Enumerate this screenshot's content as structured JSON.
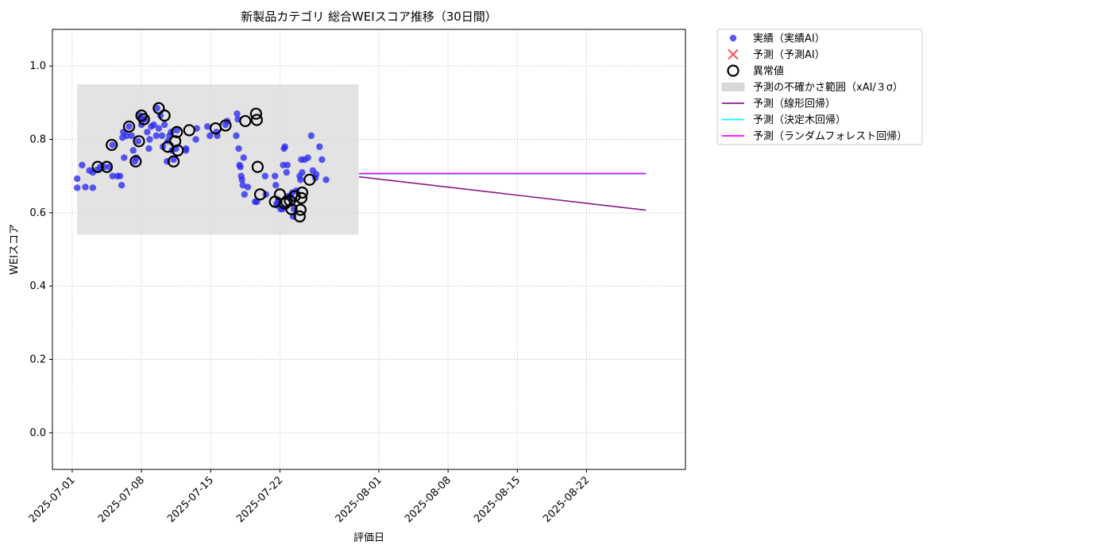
{
  "chart_data": {
    "type": "scatter",
    "title": "新製品カテゴリ 総合WEIスコア推移（30日間）",
    "xlabel": "評価日",
    "ylabel": "WEIスコア",
    "xlim": [
      "2025-06-29",
      "2025-09-01"
    ],
    "ylim": [
      -0.1,
      1.1
    ],
    "xticks": [
      "2025-07-01",
      "2025-07-08",
      "2025-07-15",
      "2025-07-22",
      "2025-08-01",
      "2025-08-08",
      "2025-08-15",
      "2025-08-22"
    ],
    "yticks": [
      0.0,
      0.2,
      0.4,
      0.6,
      0.8,
      1.0
    ],
    "ytick_labels": [
      "0.0",
      "0.2",
      "0.4",
      "0.6",
      "0.8",
      "1.0"
    ],
    "grid": true,
    "legend_position": "outside-top-right",
    "colors": {
      "actual": "#2a2af0",
      "forecast_marker": "#ff4040",
      "anomaly": "#000000",
      "uncertainty": "#d9d9d9",
      "linear": "#8b1a8b",
      "tree": "#00ffff",
      "forest": "#ff00ff"
    },
    "legend": [
      {
        "label": "実績（実績AI）",
        "kind": "dot"
      },
      {
        "label": "予測（予測AI）",
        "kind": "x"
      },
      {
        "label": "異常値",
        "kind": "ring"
      },
      {
        "label": "予測の不確かさ範囲（xAI/３σ）",
        "kind": "patch"
      },
      {
        "label": "予測（線形回帰）",
        "kind": "line-linear"
      },
      {
        "label": "予測（決定木回帰）",
        "kind": "line-tree"
      },
      {
        "label": "予測（ランダムフォレスト回帰）",
        "kind": "line-forest"
      }
    ],
    "uncertainty_band": {
      "x_start": "2025-07-01 12:00",
      "x_end": "2025-07-29 23:00",
      "y_low": 0.54,
      "y_high": 0.95
    },
    "series": [
      {
        "name": "実績（実績AI）",
        "points": [
          [
            "2025-07-01 12:00",
            0.693
          ],
          [
            "2025-07-01 12:00",
            0.668
          ],
          [
            "2025-07-02 00:00",
            0.73
          ],
          [
            "2025-07-02 08:00",
            0.67
          ],
          [
            "2025-07-02 18:00",
            0.715
          ],
          [
            "2025-07-03 02:00",
            0.668
          ],
          [
            "2025-07-03 02:00",
            0.71
          ],
          [
            "2025-07-03 12:00",
            0.717
          ],
          [
            "2025-07-03 20:00",
            0.725
          ],
          [
            "2025-07-04 06:00",
            0.725
          ],
          [
            "2025-07-04 18:00",
            0.725
          ],
          [
            "2025-07-05 02:00",
            0.785
          ],
          [
            "2025-07-05 02:00",
            0.7
          ],
          [
            "2025-07-05 14:00",
            0.7
          ],
          [
            "2025-07-05 20:00",
            0.7
          ],
          [
            "2025-07-06 00:00",
            0.675
          ],
          [
            "2025-07-06 02:00",
            0.805
          ],
          [
            "2025-07-06 04:00",
            0.82
          ],
          [
            "2025-07-06 06:00",
            0.75
          ],
          [
            "2025-07-06 12:00",
            0.81
          ],
          [
            "2025-07-06 18:00",
            0.835
          ],
          [
            "2025-07-07 00:00",
            0.81
          ],
          [
            "2025-07-07 04:00",
            0.77
          ],
          [
            "2025-07-07 08:00",
            0.74
          ],
          [
            "2025-07-07 12:00",
            0.75
          ],
          [
            "2025-07-07 16:00",
            0.795
          ],
          [
            "2025-07-07 20:00",
            0.865
          ],
          [
            "2025-07-08 00:00",
            0.84
          ],
          [
            "2025-07-08 04:00",
            0.855
          ],
          [
            "2025-07-08 08:00",
            0.855
          ],
          [
            "2025-07-08 14:00",
            0.82
          ],
          [
            "2025-07-08 18:00",
            0.775
          ],
          [
            "2025-07-08 20:00",
            0.8
          ],
          [
            "2025-07-09 00:00",
            0.835
          ],
          [
            "2025-07-09 06:00",
            0.84
          ],
          [
            "2025-07-09 12:00",
            0.81
          ],
          [
            "2025-07-09 14:00",
            0.885
          ],
          [
            "2025-07-09 18:00",
            0.83
          ],
          [
            "2025-07-09 22:00",
            0.865
          ],
          [
            "2025-07-10 02:00",
            0.81
          ],
          [
            "2025-07-10 04:00",
            0.78
          ],
          [
            "2025-07-10 08:00",
            0.84
          ],
          [
            "2025-07-10 14:00",
            0.74
          ],
          [
            "2025-07-10 16:00",
            0.795
          ],
          [
            "2025-07-10 20:00",
            0.81
          ],
          [
            "2025-07-11 00:00",
            0.82
          ],
          [
            "2025-07-11 02:00",
            0.77
          ],
          [
            "2025-07-11 06:00",
            0.745
          ],
          [
            "2025-07-11 12:00",
            0.775
          ],
          [
            "2025-07-11 14:00",
            0.825
          ],
          [
            "2025-07-12 12:00",
            0.775
          ],
          [
            "2025-07-12 12:00",
            0.77
          ],
          [
            "2025-07-13 12:00",
            0.8
          ],
          [
            "2025-07-13 14:00",
            0.83
          ],
          [
            "2025-07-14 16:00",
            0.835
          ],
          [
            "2025-07-14 22:00",
            0.81
          ],
          [
            "2025-07-15 14:00",
            0.82
          ],
          [
            "2025-07-15 16:00",
            0.81
          ],
          [
            "2025-07-16 12:00",
            0.84
          ],
          [
            "2025-07-16 16:00",
            0.85
          ],
          [
            "2025-07-17 14:00",
            0.81
          ],
          [
            "2025-07-17 16:00",
            0.87
          ],
          [
            "2025-07-17 18:00",
            0.855
          ],
          [
            "2025-07-17 20:00",
            0.775
          ],
          [
            "2025-07-17 22:00",
            0.73
          ],
          [
            "2025-07-18 00:00",
            0.725
          ],
          [
            "2025-07-18 02:00",
            0.7
          ],
          [
            "2025-07-18 04:00",
            0.69
          ],
          [
            "2025-07-18 06:00",
            0.675
          ],
          [
            "2025-07-18 08:00",
            0.75
          ],
          [
            "2025-07-18 10:00",
            0.65
          ],
          [
            "2025-07-18 18:00",
            0.67
          ],
          [
            "2025-07-19 12:00",
            0.63
          ],
          [
            "2025-07-19 16:00",
            0.63
          ],
          [
            "2025-07-20 12:00",
            0.7
          ],
          [
            "2025-07-20 14:00",
            0.65
          ],
          [
            "2025-07-21 12:00",
            0.7
          ],
          [
            "2025-07-21 14:00",
            0.675
          ],
          [
            "2025-07-21 16:00",
            0.625
          ],
          [
            "2025-07-21 18:00",
            0.62
          ],
          [
            "2025-07-21 20:00",
            0.635
          ],
          [
            "2025-07-22 02:00",
            0.61
          ],
          [
            "2025-07-22 06:00",
            0.61
          ],
          [
            "2025-07-22 08:00",
            0.73
          ],
          [
            "2025-07-22 10:00",
            0.775
          ],
          [
            "2025-07-22 12:00",
            0.78
          ],
          [
            "2025-07-22 16:00",
            0.71
          ],
          [
            "2025-07-22 18:00",
            0.73
          ],
          [
            "2025-07-22 20:00",
            0.645
          ],
          [
            "2025-07-23 00:00",
            0.645
          ],
          [
            "2025-07-23 02:00",
            0.64
          ],
          [
            "2025-07-23 06:00",
            0.655
          ],
          [
            "2025-07-23 08:00",
            0.59
          ],
          [
            "2025-07-23 10:00",
            0.61
          ],
          [
            "2025-07-23 16:00",
            0.66
          ],
          [
            "2025-07-24 00:00",
            0.7
          ],
          [
            "2025-07-24 02:00",
            0.69
          ],
          [
            "2025-07-24 04:00",
            0.745
          ],
          [
            "2025-07-24 06:00",
            0.71
          ],
          [
            "2025-07-24 12:00",
            0.745
          ],
          [
            "2025-07-24 20:00",
            0.75
          ],
          [
            "2025-07-25 04:00",
            0.81
          ],
          [
            "2025-07-25 08:00",
            0.715
          ],
          [
            "2025-07-25 14:00",
            0.695
          ],
          [
            "2025-07-25 16:00",
            0.705
          ],
          [
            "2025-07-26 00:00",
            0.78
          ],
          [
            "2025-07-26 06:00",
            0.745
          ],
          [
            "2025-07-26 16:00",
            0.69
          ]
        ]
      },
      {
        "name": "異常値",
        "points": [
          [
            "2025-07-03 14:00",
            0.725
          ],
          [
            "2025-07-04 12:00",
            0.725
          ],
          [
            "2025-07-05 00:00",
            0.785
          ],
          [
            "2025-07-06 18:00",
            0.835
          ],
          [
            "2025-07-07 10:00",
            0.74
          ],
          [
            "2025-07-07 18:00",
            0.795
          ],
          [
            "2025-07-08 00:00",
            0.865
          ],
          [
            "2025-07-08 06:00",
            0.855
          ],
          [
            "2025-07-09 18:00",
            0.885
          ],
          [
            "2025-07-10 08:00",
            0.865
          ],
          [
            "2025-07-10 16:00",
            0.78
          ],
          [
            "2025-07-11 06:00",
            0.74
          ],
          [
            "2025-07-11 10:00",
            0.795
          ],
          [
            "2025-07-11 14:00",
            0.82
          ],
          [
            "2025-07-11 16:00",
            0.77
          ],
          [
            "2025-07-12 20:00",
            0.825
          ],
          [
            "2025-07-15 12:00",
            0.83
          ],
          [
            "2025-07-16 12:00",
            0.838
          ],
          [
            "2025-07-18 12:00",
            0.85
          ],
          [
            "2025-07-19 14:00",
            0.87
          ],
          [
            "2025-07-19 16:00",
            0.853
          ],
          [
            "2025-07-19 18:00",
            0.725
          ],
          [
            "2025-07-20 00:00",
            0.65
          ],
          [
            "2025-07-21 12:00",
            0.63
          ],
          [
            "2025-07-22 00:00",
            0.65
          ],
          [
            "2025-07-22 12:00",
            0.625
          ],
          [
            "2025-07-22 16:00",
            0.63
          ],
          [
            "2025-07-23 00:00",
            0.633
          ],
          [
            "2025-07-23 04:00",
            0.61
          ],
          [
            "2025-07-23 12:00",
            0.645
          ],
          [
            "2025-07-24 00:00",
            0.59
          ],
          [
            "2025-07-24 02:00",
            0.608
          ],
          [
            "2025-07-24 04:00",
            0.64
          ],
          [
            "2025-07-24 06:00",
            0.655
          ],
          [
            "2025-07-25 00:00",
            0.69
          ]
        ]
      },
      {
        "name": "予測（線形回帰）",
        "points": [
          [
            "2025-07-30 00:00",
            0.698
          ],
          [
            "2025-08-28 00:00",
            0.607
          ]
        ]
      },
      {
        "name": "予測（決定木回帰）",
        "points": [
          [
            "2025-07-30 00:00",
            0.706
          ],
          [
            "2025-08-28 00:00",
            0.706
          ]
        ]
      },
      {
        "name": "予測（ランダムフォレスト回帰）",
        "points": [
          [
            "2025-07-30 00:00",
            0.707
          ],
          [
            "2025-08-28 00:00",
            0.707
          ]
        ]
      }
    ]
  }
}
